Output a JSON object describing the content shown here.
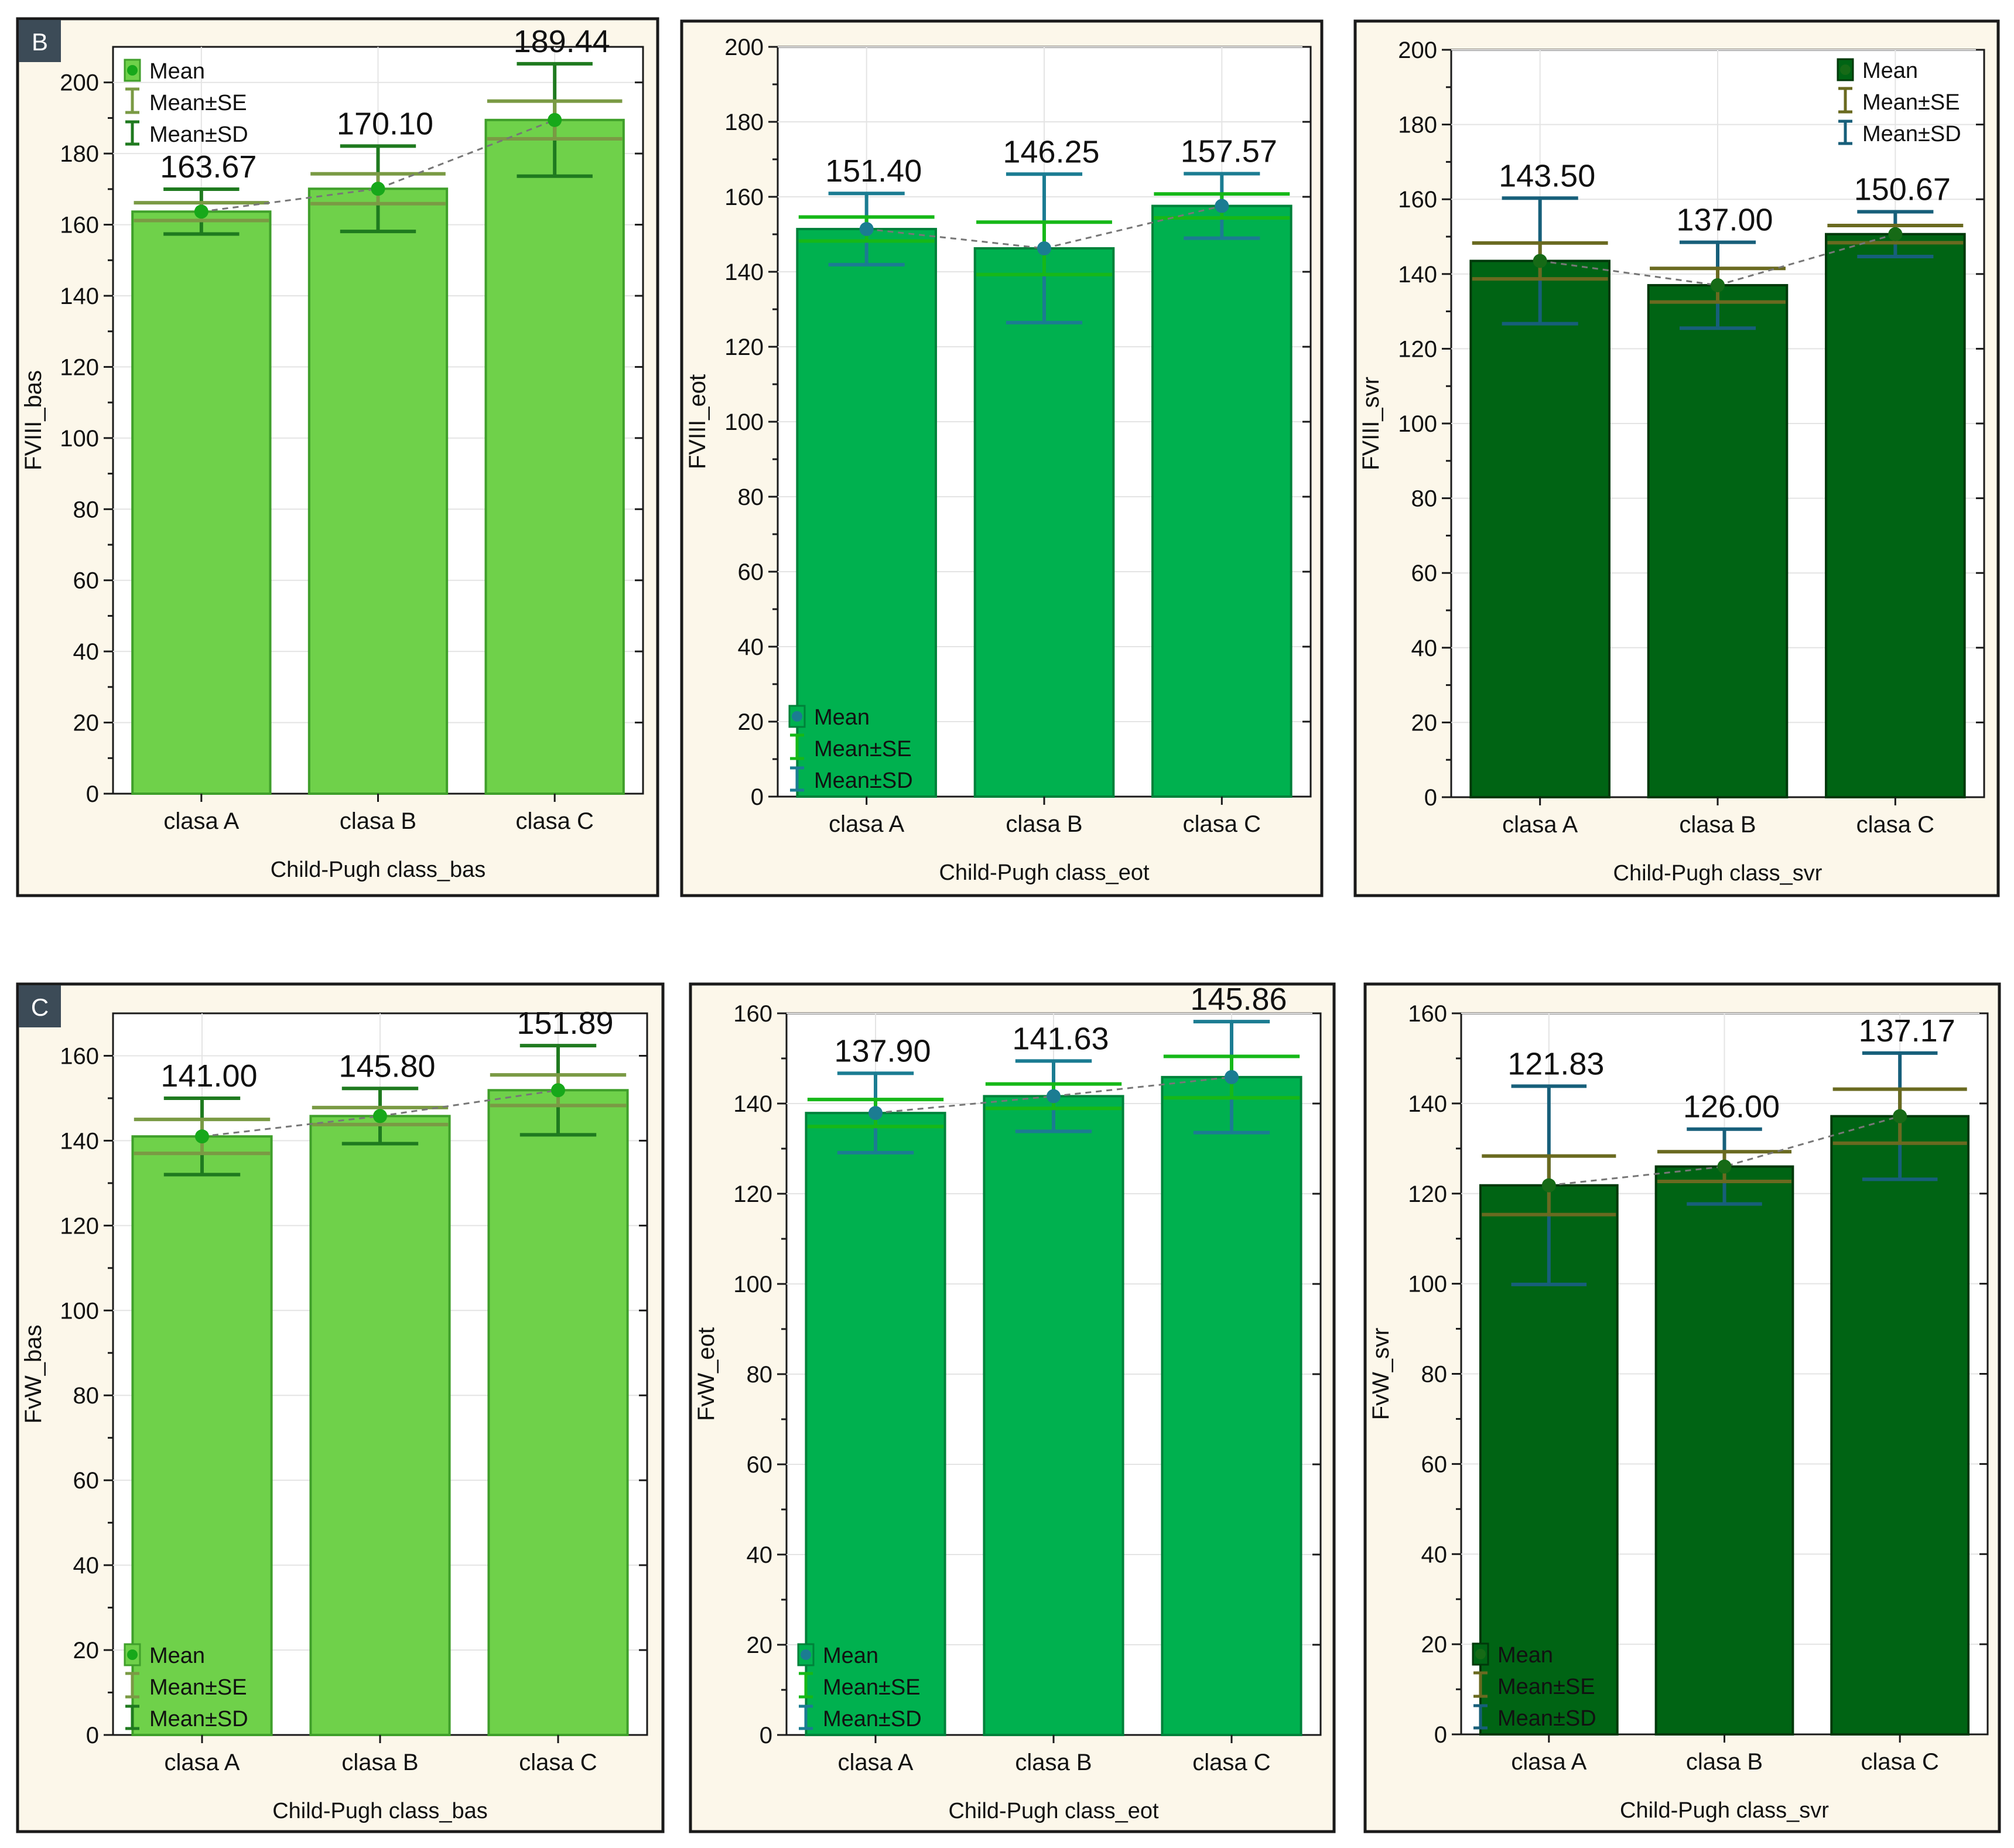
{
  "panel_labels": [
    "B",
    "C"
  ],
  "legend": {
    "mean": "Mean",
    "se": "Mean±SE",
    "sd": "Mean±SD"
  },
  "colors": {
    "light_bar": "#6fd14a",
    "light_bar_stroke": "#3f9f2a",
    "light_mean": "#17a81a",
    "light_se": "#7a9a44",
    "light_sd": "#1f7a1f",
    "mid_bar": "#00b14f",
    "mid_bar_stroke": "#00813a",
    "mid_mean": "#1b7c92",
    "mid_se": "#16b818",
    "mid_sd": "#1b7c92",
    "dark_bar": "#006414",
    "dark_bar_stroke": "#00380a",
    "dark_mean": "#166a16",
    "dark_se": "#6a6a20",
    "dark_sd": "#175f7a"
  },
  "chart_data": [
    {
      "id": "fviii_bas",
      "type": "bar",
      "theme": "light",
      "badge": "B",
      "title": "",
      "xlabel": "Child-Pugh class_bas",
      "ylabel": "FVIII_bas",
      "ylim": [
        0,
        210
      ],
      "yticks": [
        0,
        20,
        40,
        60,
        80,
        100,
        120,
        140,
        160,
        180,
        200
      ],
      "categories": [
        "clasa A",
        "clasa B",
        "clasa C"
      ],
      "values": [
        163.67,
        170.1,
        189.44
      ],
      "value_labels": [
        "163.67",
        "170.10",
        "189.44"
      ],
      "se": [
        2.5,
        4.2,
        5.3
      ],
      "sd": [
        6.3,
        12.0,
        15.8
      ],
      "legend_position": "top-left"
    },
    {
      "id": "fviii_eot",
      "type": "bar",
      "theme": "mid",
      "badge": "",
      "title": "",
      "xlabel": "Child-Pugh class_eot",
      "ylabel": "FVIII_eot",
      "ylim": [
        0,
        200
      ],
      "yticks": [
        0,
        20,
        40,
        60,
        80,
        100,
        120,
        140,
        160,
        180,
        200
      ],
      "categories": [
        "clasa A",
        "clasa B",
        "clasa C"
      ],
      "values": [
        151.4,
        146.25,
        157.57
      ],
      "value_labels": [
        "151.40",
        "146.25",
        "157.57"
      ],
      "se": [
        3.2,
        7.0,
        3.2
      ],
      "sd": [
        9.5,
        19.8,
        8.6
      ],
      "legend_position": "bottom-left"
    },
    {
      "id": "fviii_svr",
      "type": "bar",
      "theme": "dark",
      "badge": "",
      "title": "",
      "xlabel": "Child-Pugh class_svr",
      "ylabel": "FVIII_svr",
      "ylim": [
        0,
        200
      ],
      "yticks": [
        0,
        20,
        40,
        60,
        80,
        100,
        120,
        140,
        160,
        180,
        200
      ],
      "categories": [
        "clasa A",
        "clasa B",
        "clasa C"
      ],
      "values": [
        143.5,
        137.0,
        150.67
      ],
      "value_labels": [
        "143.50",
        "137.00",
        "150.67"
      ],
      "se": [
        4.8,
        4.5,
        2.3
      ],
      "sd": [
        16.8,
        11.5,
        6.0
      ],
      "legend_position": "top-right"
    },
    {
      "id": "fvw_bas",
      "type": "bar",
      "theme": "light",
      "badge": "C",
      "title": "",
      "xlabel": "Child-Pugh class_bas",
      "ylabel": "FvW_bas",
      "ylim": [
        0,
        170
      ],
      "yticks": [
        0,
        20,
        40,
        60,
        80,
        100,
        120,
        140,
        160
      ],
      "categories": [
        "clasa A",
        "clasa B",
        "clasa C"
      ],
      "values": [
        141.0,
        145.8,
        151.89
      ],
      "value_labels": [
        "141.00",
        "145.80",
        "151.89"
      ],
      "se": [
        4.0,
        2.0,
        3.6
      ],
      "sd": [
        9.0,
        6.5,
        10.5
      ],
      "legend_position": "bottom-left"
    },
    {
      "id": "fvw_eot",
      "type": "bar",
      "theme": "mid",
      "badge": "",
      "title": "",
      "xlabel": "Child-Pugh class_eot",
      "ylabel": "FvW_eot",
      "ylim": [
        0,
        160
      ],
      "yticks": [
        0,
        20,
        40,
        60,
        80,
        100,
        120,
        140,
        160
      ],
      "categories": [
        "clasa A",
        "clasa B",
        "clasa C"
      ],
      "values": [
        137.9,
        141.63,
        145.86
      ],
      "value_labels": [
        "137.90",
        "141.63",
        "145.86"
      ],
      "se": [
        3.0,
        2.7,
        4.6
      ],
      "sd": [
        8.8,
        7.8,
        12.3
      ],
      "legend_position": "bottom-left"
    },
    {
      "id": "fvw_svr",
      "type": "bar",
      "theme": "dark",
      "badge": "",
      "title": "",
      "xlabel": "Child-Pugh class_svr",
      "ylabel": "FvW_svr",
      "ylim": [
        0,
        160
      ],
      "yticks": [
        0,
        20,
        40,
        60,
        80,
        100,
        120,
        140,
        160
      ],
      "categories": [
        "clasa A",
        "clasa B",
        "clasa C"
      ],
      "values": [
        121.83,
        126.0,
        137.17
      ],
      "value_labels": [
        "121.83",
        "126.00",
        "137.17"
      ],
      "se": [
        6.5,
        3.3,
        6.0
      ],
      "sd": [
        22.0,
        8.3,
        14.0
      ],
      "legend_position": "bottom-left"
    }
  ]
}
